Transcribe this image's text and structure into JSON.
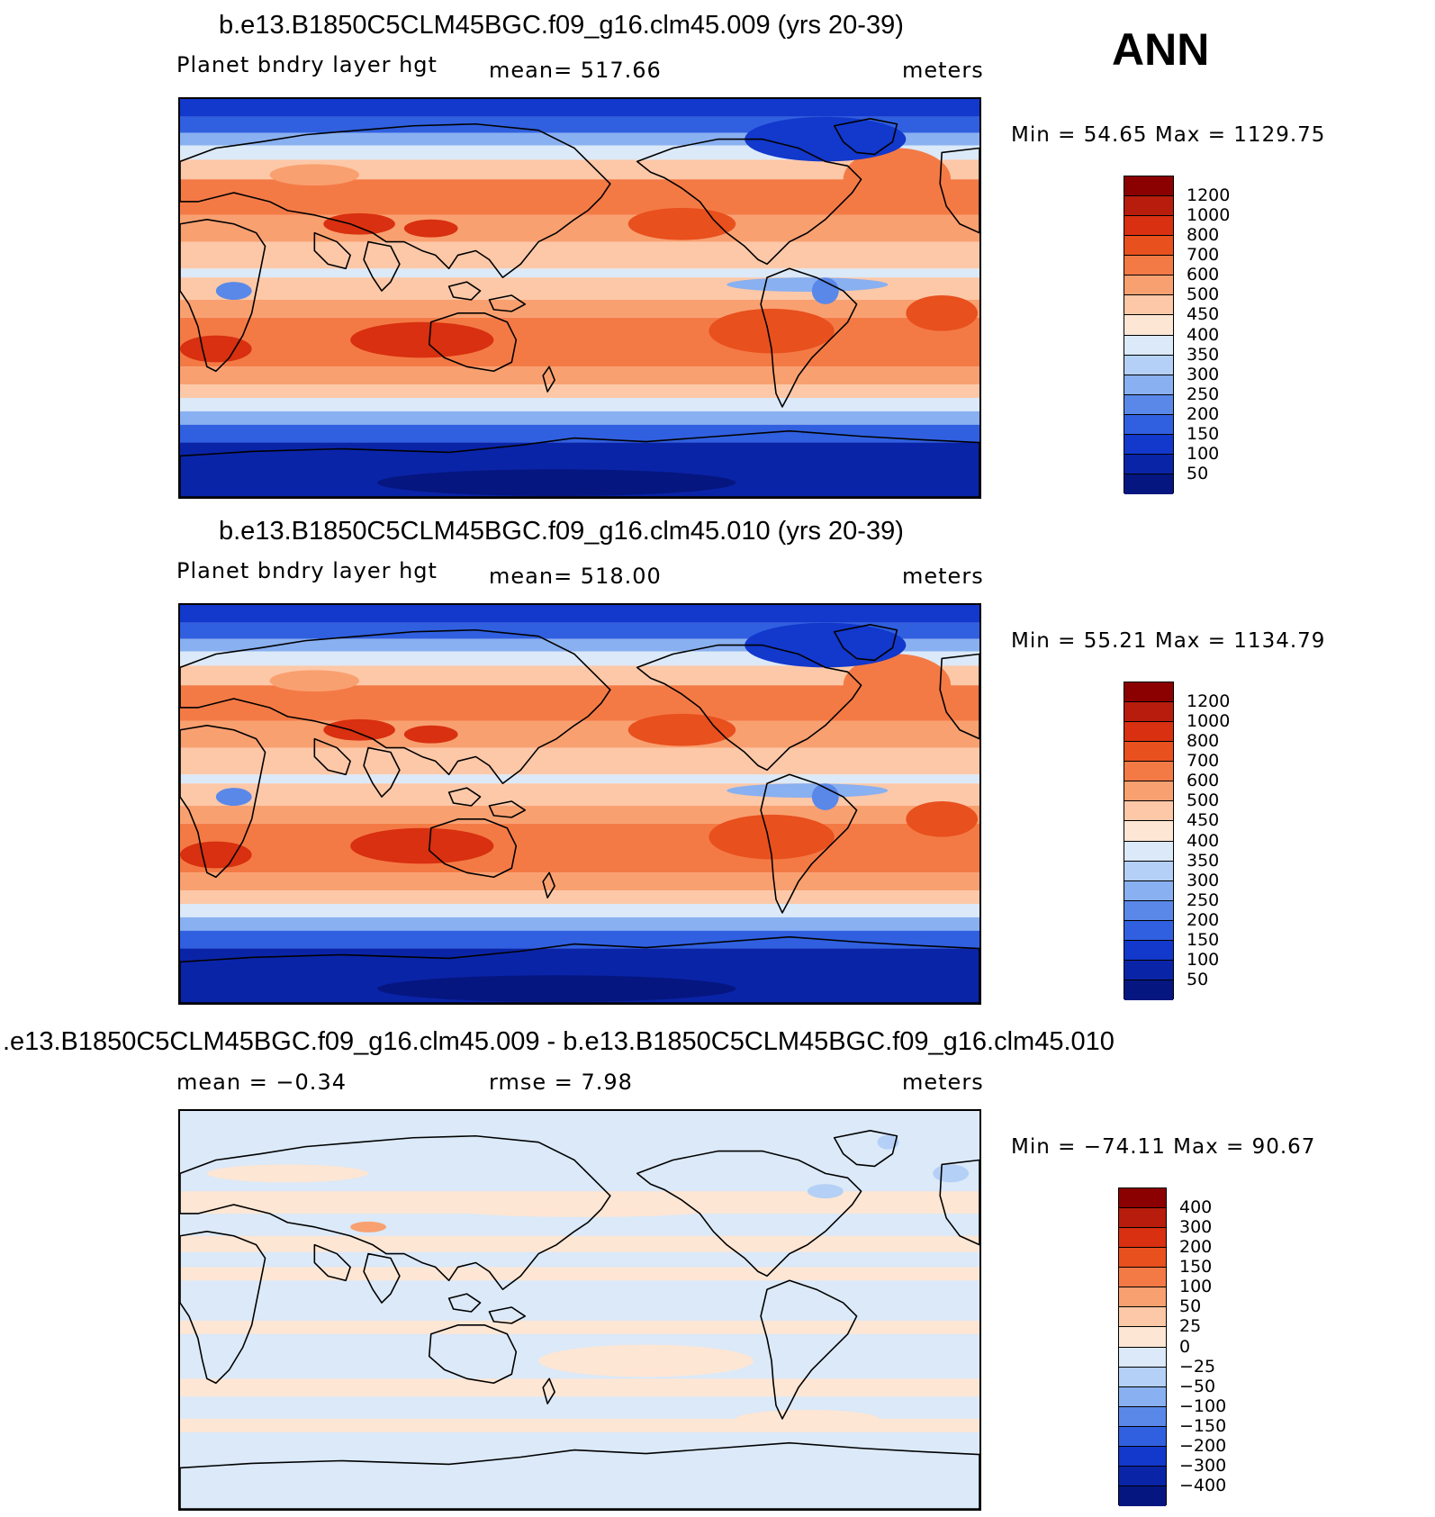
{
  "season": "ANN",
  "panels": [
    {
      "title": "b.e13.B1850C5CLM45BGC.f09_g16.clm45.009 (yrs 20-39)",
      "variable": "Planet bndry layer hgt",
      "stat": "mean=  517.66",
      "units": "meters",
      "minmax": "Min =   54.65  Max =  1129.75",
      "colorbar": [
        "1200",
        "1000",
        "800",
        "700",
        "600",
        "500",
        "450",
        "400",
        "350",
        "300",
        "250",
        "200",
        "150",
        "100",
        "50"
      ],
      "map_style": "field"
    },
    {
      "title": "b.e13.B1850C5CLM45BGC.f09_g16.clm45.010 (yrs 20-39)",
      "variable": "Planet bndry layer hgt",
      "stat": "mean=  518.00",
      "units": "meters",
      "minmax": "Min =   55.21  Max =  1134.79",
      "colorbar": [
        "1200",
        "1000",
        "800",
        "700",
        "600",
        "500",
        "450",
        "400",
        "350",
        "300",
        "250",
        "200",
        "150",
        "100",
        "50"
      ],
      "map_style": "field"
    },
    {
      "title": ".e13.B1850C5CLM45BGC.f09_g16.clm45.009 - b.e13.B1850C5CLM45BGC.f09_g16.clm45.010",
      "variable": "mean =   −0.34",
      "stat": "rmse =     7.98",
      "units": "meters",
      "minmax": "Min =  −74.11  Max =    90.67",
      "colorbar": [
        "400",
        "300",
        "200",
        "150",
        "100",
        "50",
        "25",
        "0",
        "−25",
        "−50",
        "−100",
        "−150",
        "−200",
        "−300",
        "−400"
      ],
      "map_style": "diff"
    }
  ],
  "colors": {
    "scale": [
      "#8b0000",
      "#b71c0c",
      "#d83010",
      "#e8501e",
      "#f47a45",
      "#f9a070",
      "#fcc8a8",
      "#fde6d4",
      "#dbe9f8",
      "#b4d0f6",
      "#89b0f0",
      "#5a88e8",
      "#3060e0",
      "#1238cc",
      "#0a24a8",
      "#061680"
    ],
    "continent": "#000000",
    "frame": "#000000"
  }
}
